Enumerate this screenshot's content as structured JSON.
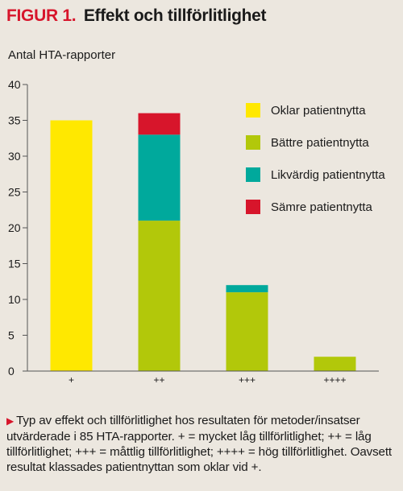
{
  "figure": {
    "label": "FIGUR 1.",
    "title": "Effekt och tillförlitlighet"
  },
  "caption": "Typ av effekt och tillförlitlighet hos resultaten för metoder/insatser utvärderade i 85 HTA-rapporter. + = mycket låg tillförlitlighet; ++ = låg tillförlitlighet; +++ = måttlig tillförlitlighet; ++++ = hög tillförlitlighet. Oavsett resultat klassades patientnyttan som oklar vid +.",
  "chart_data": {
    "type": "bar",
    "stacked": true,
    "ylabel": "Antal HTA-rapporter",
    "xlabel": "",
    "categories": [
      "+",
      "++",
      "+++",
      "++++"
    ],
    "ylim": [
      0,
      40
    ],
    "yticks": [
      0,
      5,
      10,
      15,
      20,
      25,
      30,
      35,
      40
    ],
    "grid": false,
    "legend_position": "top-right",
    "series": [
      {
        "name": "Oklar patientnytta",
        "color": "#ffe800",
        "values": [
          35,
          0,
          0,
          0
        ]
      },
      {
        "name": "Bättre patientnytta",
        "color": "#b2c80a",
        "values": [
          0,
          21,
          11,
          2
        ]
      },
      {
        "name": "Likvärdig patientnytta",
        "color": "#00a99c",
        "values": [
          0,
          12,
          1,
          0
        ]
      },
      {
        "name": "Sämre patientnytta",
        "color": "#d7152b",
        "values": [
          0,
          3,
          0,
          0
        ]
      }
    ]
  }
}
